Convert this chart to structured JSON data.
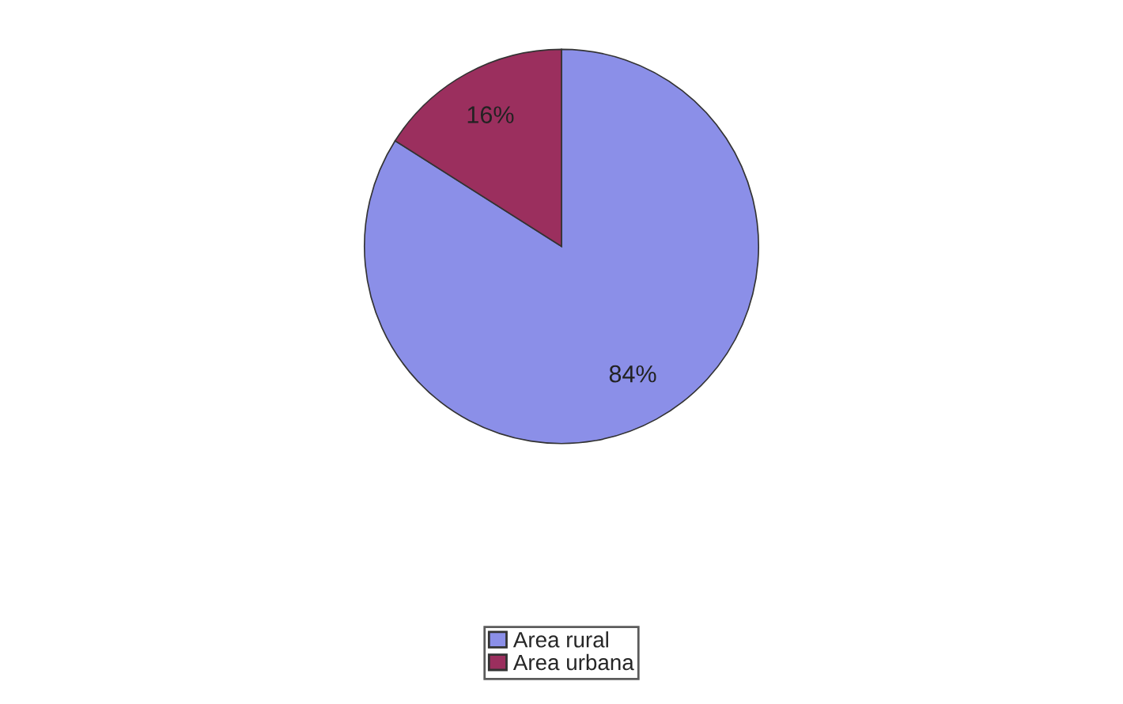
{
  "chart_data": {
    "type": "pie",
    "categories": [
      "Area rural",
      "Area urbana"
    ],
    "values": [
      84,
      16
    ],
    "colors": [
      "#8b8fe8",
      "#9b2f5e"
    ],
    "value_labels": [
      "84%",
      "16%"
    ],
    "legend": "bottom"
  }
}
